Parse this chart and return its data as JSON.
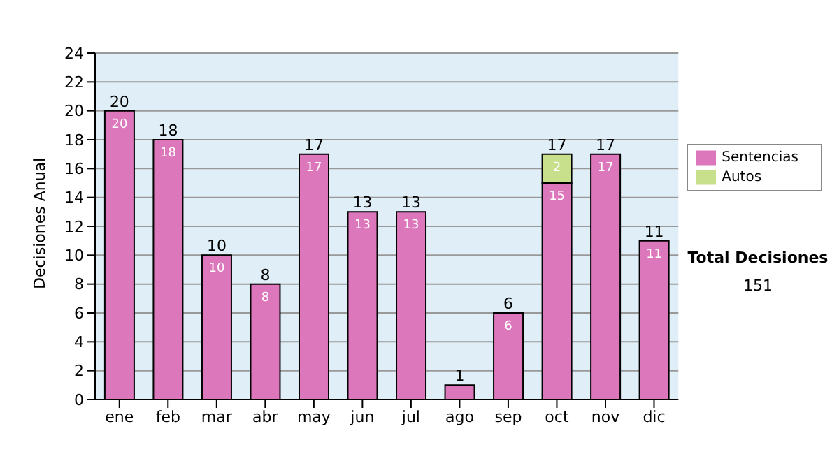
{
  "chart_data": {
    "type": "bar",
    "stacked": true,
    "ylabel": "Decisiones Anual",
    "categories": [
      "ene",
      "feb",
      "mar",
      "abr",
      "may",
      "jun",
      "jul",
      "ago",
      "sep",
      "oct",
      "nov",
      "dic"
    ],
    "series": [
      {
        "name": "Sentencias",
        "color": "#dd77bb",
        "values": [
          20,
          18,
          10,
          8,
          17,
          13,
          13,
          1,
          6,
          15,
          17,
          11
        ],
        "value_labels": [
          "20",
          "18",
          "10",
          "8",
          "17",
          "13",
          "13",
          null,
          "6",
          "15",
          "17",
          "11"
        ]
      },
      {
        "name": "Autos",
        "color": "#c8e08c",
        "values": [
          null,
          null,
          null,
          null,
          null,
          null,
          null,
          null,
          null,
          2,
          null,
          null
        ],
        "value_labels": [
          null,
          null,
          null,
          null,
          null,
          null,
          null,
          null,
          null,
          "2",
          null,
          null
        ]
      }
    ],
    "totals": [
      "20",
      "18",
      "10",
      "8",
      "17",
      "13",
      "13",
      "1",
      "6",
      "17",
      "17",
      "11"
    ],
    "ylim": [
      0,
      24
    ],
    "yticks": [
      0,
      2,
      4,
      6,
      8,
      10,
      12,
      14,
      16,
      18,
      20,
      22,
      24
    ],
    "grid": "y",
    "legend": "right",
    "annotations": [
      "Total Decisiones",
      "151"
    ]
  }
}
